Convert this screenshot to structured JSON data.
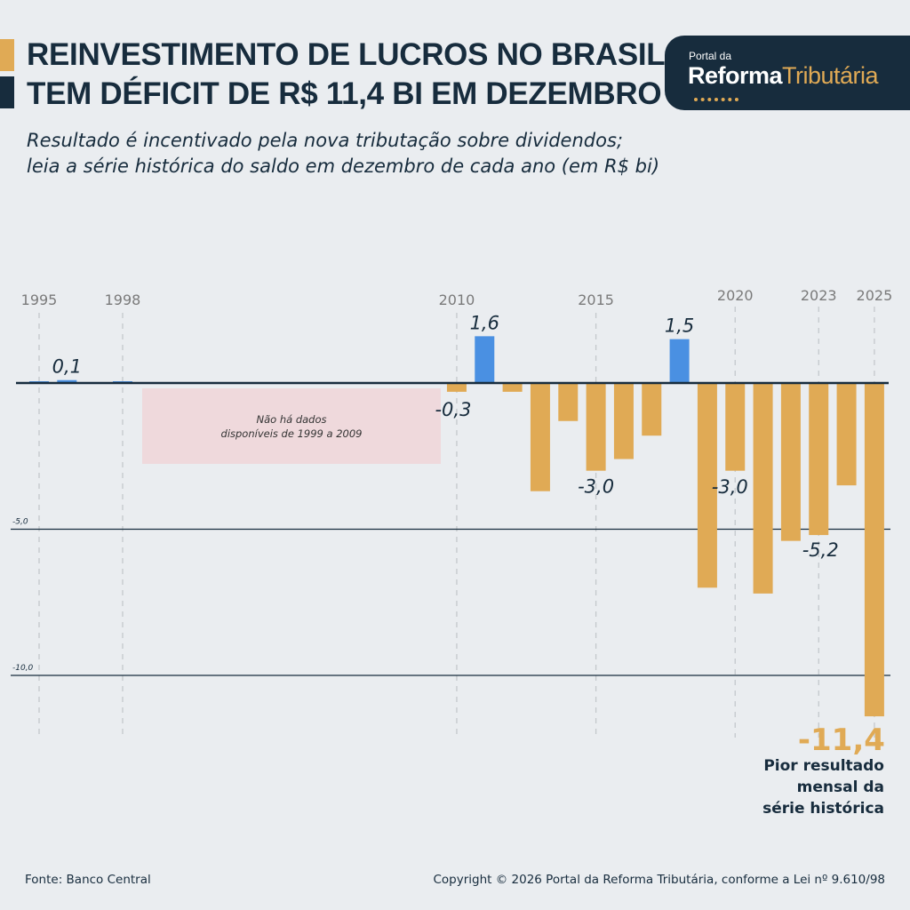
{
  "header": {
    "title_line1": "REINVESTIMENTO DE LUCROS NO BRASIL",
    "title_line2": "TEM DÉFICIT DE R$ 11,4 BI EM DEZEMBRO",
    "subtitle_line1": "Resultado é incentivado pela nova tributação sobre dividendos;",
    "subtitle_line2": "leia a série histórica do saldo em dezembro de cada ano (em R$ bi)"
  },
  "logo": {
    "small": "Portal da",
    "word1": "Reforma",
    "word2": "Tributária"
  },
  "colors": {
    "positive": "#4a90e2",
    "negative": "#e0aa55",
    "dark": "#172c3d",
    "accent": "#e0aa55",
    "no_data_box": "#efd9dc"
  },
  "chart_data": {
    "type": "bar",
    "title": "",
    "xlabel": "",
    "ylabel": "",
    "ylim": [
      -12,
      2
    ],
    "grid": true,
    "ytick_labels": [
      {
        "value": -5,
        "label": "-5,0"
      },
      {
        "value": -10,
        "label": "-10,0"
      }
    ],
    "xtick_labels": [
      "1995",
      "1998",
      "2010",
      "2015",
      "2020",
      "2023",
      "2025"
    ],
    "years": [
      1995,
      1996,
      1997,
      1998,
      2010,
      2011,
      2012,
      2013,
      2014,
      2015,
      2016,
      2017,
      2018,
      2019,
      2020,
      2021,
      2022,
      2023,
      2024,
      2025
    ],
    "values": [
      0.03,
      0.1,
      0.0,
      0.03,
      -0.3,
      1.6,
      -0.3,
      -3.7,
      -1.3,
      -3.0,
      -2.6,
      -1.8,
      1.5,
      -7.0,
      -3.0,
      -7.2,
      -5.4,
      -5.2,
      -3.5,
      -11.4
    ],
    "data_labels": {
      "1996": "0,1",
      "2010": "-0,3",
      "2011": "1,6",
      "2015": "-3,0",
      "2018": "1,5",
      "2020": "-3,0",
      "2023": "-5,2",
      "2025": "-11,4"
    },
    "no_data_note_line1": "Não há dados",
    "no_data_note_line2": "disponíveis de 1999 a 2009",
    "highlight_note": [
      "Pior resultado",
      "mensal da",
      "série histórica"
    ]
  },
  "footer": {
    "source": "Fonte: Banco Central",
    "copyright": "Copyright © 2026 Portal da Reforma Tributária, conforme a Lei nº 9.610/98"
  }
}
